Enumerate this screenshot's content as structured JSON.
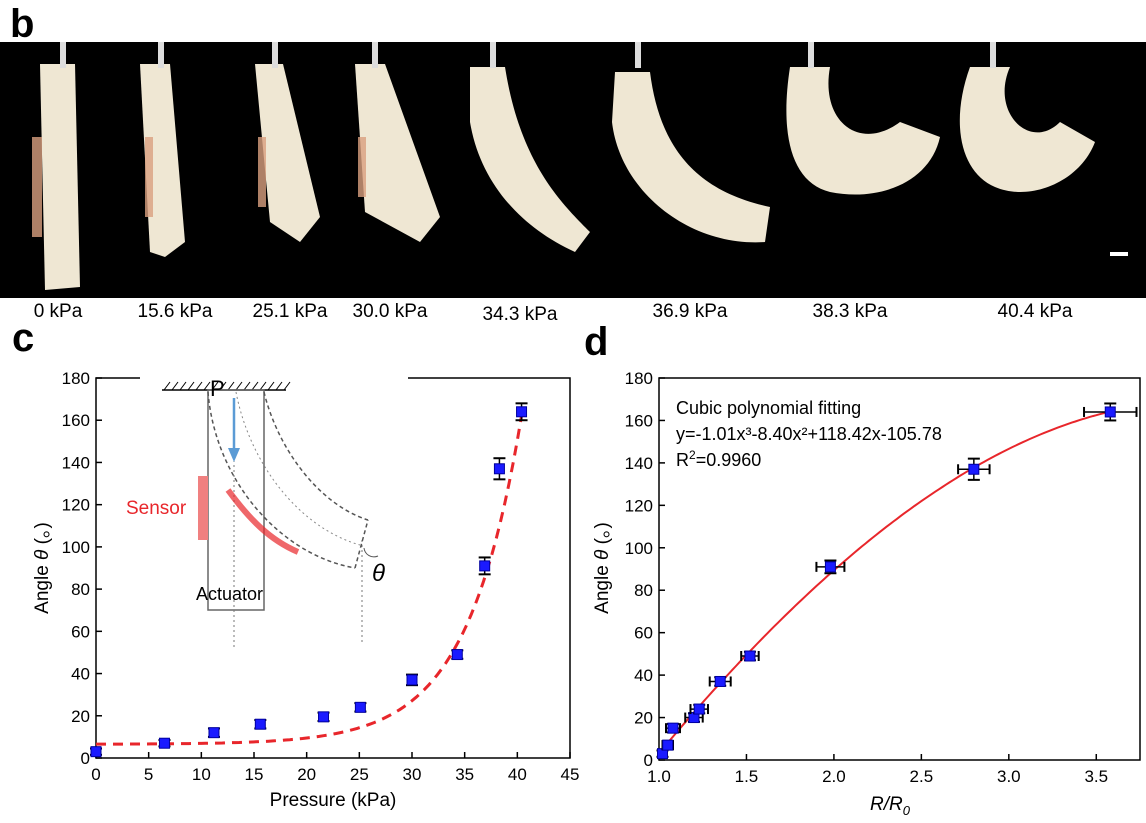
{
  "panels": {
    "b": "b",
    "c": "c",
    "d": "d"
  },
  "photo_strip": {
    "pressure_labels": [
      "0 kPa",
      "15.6 kPa",
      "25.1 kPa",
      "30.0 kPa",
      "34.3 kPa",
      "36.9 kPa",
      "38.3 kPa",
      "40.4 kPa"
    ],
    "background": "#000000",
    "actuator_color": "#efe7d3",
    "sensor_color": "#d9a07f"
  },
  "chart_data": [
    {
      "type": "scatter",
      "xlabel": "Pressure (kPa)",
      "ylabel_prefix": "Angle",
      "ylabel_symbol": "θ",
      "ylabel_unit": "(。)",
      "xlim": [
        0,
        45
      ],
      "ylim": [
        0,
        180
      ],
      "xticks": [
        0,
        5,
        10,
        15,
        20,
        25,
        30,
        35,
        40,
        45
      ],
      "yticks": [
        0,
        20,
        40,
        60,
        80,
        100,
        120,
        140,
        160,
        180
      ],
      "series": [
        {
          "marker": "square",
          "color": "#1a1aff",
          "x": [
            0,
            6.5,
            11.2,
            15.6,
            21.6,
            25.1,
            30.0,
            34.3,
            36.9,
            38.3,
            40.4
          ],
          "y": [
            3,
            7,
            12,
            16,
            19.5,
            24,
            37,
            49,
            91,
            137,
            164
          ],
          "yerr": [
            1.5,
            1.5,
            2,
            2,
            2,
            2,
            2.5,
            2,
            4,
            5,
            4
          ]
        }
      ],
      "fit": {
        "style": "dashed",
        "color": "#e8262b",
        "baseline": 6.5,
        "amplitude": 155.5,
        "x_ref": 40.4,
        "scale": 5.15
      },
      "inset": {
        "labels": {
          "pressure": "P",
          "sensor": "Sensor",
          "actuator": "Actuator",
          "angle": "θ"
        },
        "sensor_color": "#e8262b",
        "arrow_color": "#5b9bd5"
      }
    },
    {
      "type": "scatter",
      "xlabel_main": "R/R",
      "xlabel_sub": "0",
      "ylabel_prefix": "Angle",
      "ylabel_symbol": "θ",
      "ylabel_unit": "(。)",
      "xlim": [
        1.0,
        3.75
      ],
      "ylim": [
        0,
        180
      ],
      "xticks": [
        1.0,
        1.5,
        2.0,
        2.5,
        3.0,
        3.5
      ],
      "yticks": [
        0,
        20,
        40,
        60,
        80,
        100,
        120,
        140,
        160,
        180
      ],
      "series": [
        {
          "marker": "square",
          "color": "#1a1aff",
          "x": [
            1.02,
            1.05,
            1.08,
            1.2,
            1.23,
            1.35,
            1.52,
            1.98,
            2.8,
            3.58
          ],
          "y": [
            3,
            7,
            15,
            20,
            24,
            37,
            49,
            91,
            137,
            164
          ],
          "xerr": [
            0.02,
            0.03,
            0.04,
            0.05,
            0.05,
            0.06,
            0.05,
            0.08,
            0.09,
            0.15
          ],
          "yerr": [
            1.5,
            2,
            2,
            2,
            2,
            2,
            2,
            3,
            5,
            4
          ]
        }
      ],
      "annotations": {
        "title": "Cubic polynomial fitting",
        "equation": "y=-1.01x³-8.40x²+118.42x-105.78",
        "r2_label": "R",
        "r2_exp": "2",
        "r2_value": "=0.9960"
      },
      "fit": {
        "style": "solid",
        "color": "#e8262b",
        "coeffs": [
          -1.01,
          -8.4,
          118.42,
          -105.78
        ],
        "x_range": [
          1.0,
          3.58
        ]
      }
    }
  ]
}
